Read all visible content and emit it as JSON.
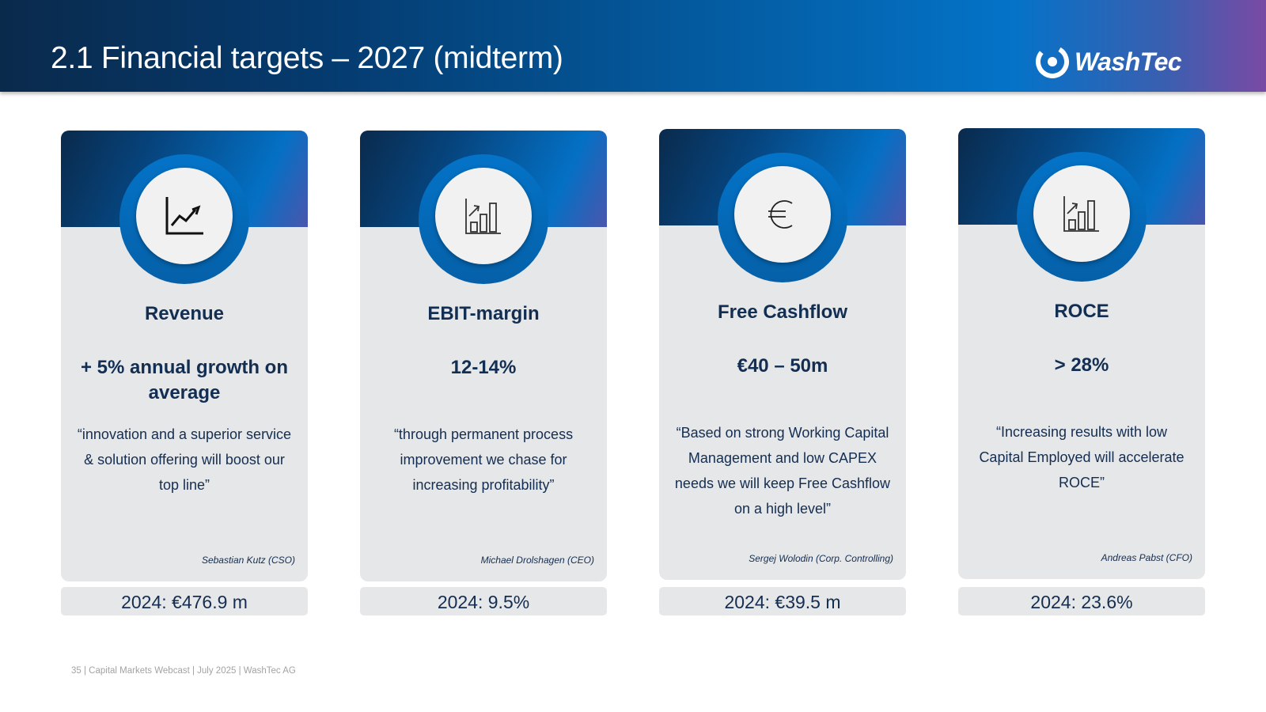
{
  "header": {
    "title": "2.1 Financial targets – 2027 (midterm)",
    "logo_text": "WashTec"
  },
  "cards": [
    {
      "icon": "line-chart-up-icon",
      "label": "Revenue",
      "target": "+ 5% annual growth on average",
      "quote": "“innovation and a superior service & solution offering will boost our top line”",
      "author": "Sebastian Kutz (CSO)",
      "result": "2024: €476.9 m"
    },
    {
      "icon": "bar-chart-up-icon",
      "label": "EBIT-margin",
      "target": "12-14%",
      "quote": "“through permanent process improvement we chase for increasing profitability”",
      "author": "Michael Drolshagen (CEO)",
      "result": "2024: 9.5%"
    },
    {
      "icon": "euro-icon",
      "label": "Free Cashflow",
      "target": "€40 – 50m",
      "quote": "“Based on strong Working Capital Management and low CAPEX needs we will keep Free Cashflow on a high level”",
      "author": "Sergej Wolodin (Corp. Controlling)",
      "result": "2024: €39.5 m"
    },
    {
      "icon": "bar-chart-up-icon",
      "label": "ROCE",
      "target": "> 28%",
      "quote": "“Increasing results with low Capital Employed will accelerate ROCE”",
      "author": "Andreas Pabst (CFO)",
      "result": "2024: 23.6%"
    }
  ],
  "footer": {
    "text": "35 |  Capital Markets Webcast | July 2025 | WashTec AG"
  }
}
